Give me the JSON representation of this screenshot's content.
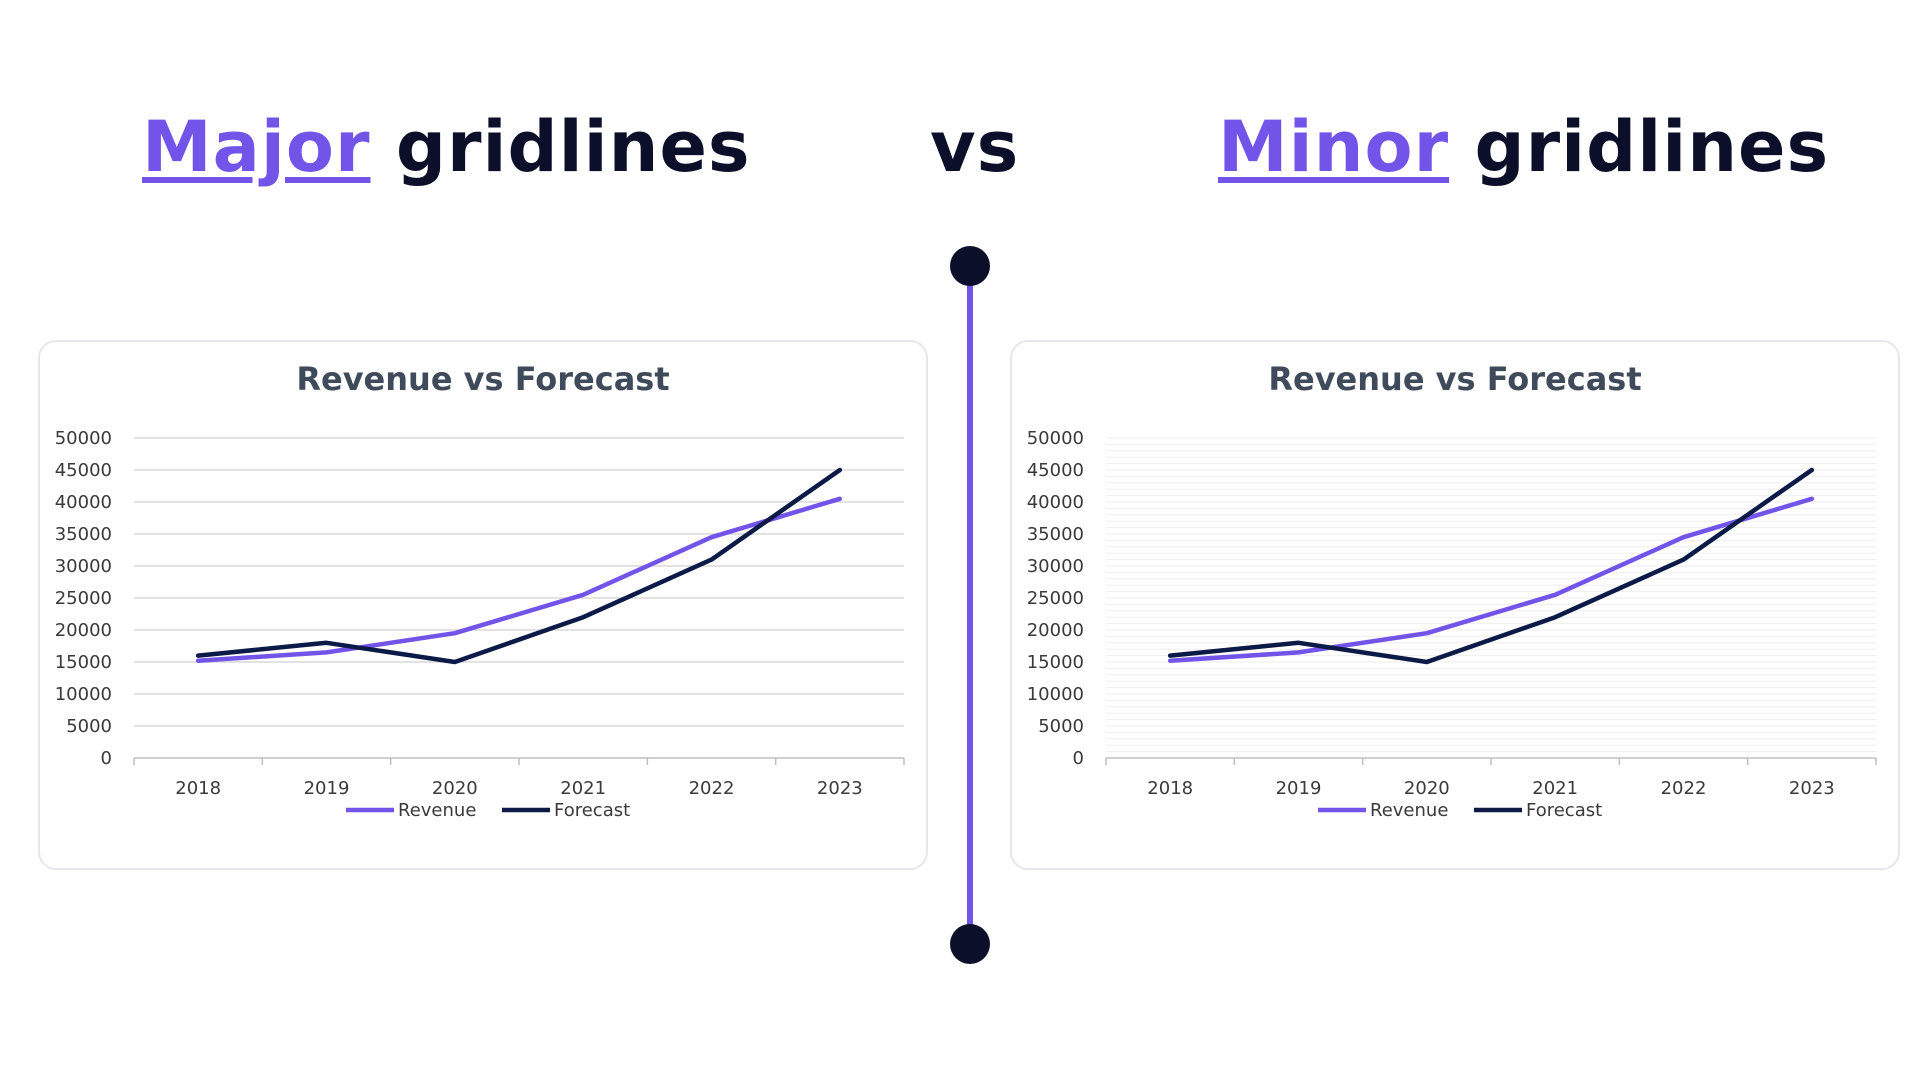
{
  "headings": {
    "left_accent": "Major",
    "left_rest": " gridlines",
    "center": "vs",
    "right_accent": "Minor",
    "right_rest": " gridlines"
  },
  "colors": {
    "accent": "#7255e8",
    "dark": "#0b1a46",
    "major_grid": "#d9d9d9",
    "minor_grid": "#eeeeee"
  },
  "chart_data": [
    {
      "type": "line",
      "title": "Revenue vs Forecast",
      "gridlines": "major",
      "x": [
        "2018",
        "2019",
        "2020",
        "2021",
        "2022",
        "2023"
      ],
      "series": [
        {
          "name": "Revenue",
          "color": "#7255e8",
          "values": [
            15200,
            16500,
            19500,
            25500,
            34500,
            40500
          ]
        },
        {
          "name": "Forecast",
          "color": "#0b1a46",
          "values": [
            16000,
            18000,
            15000,
            22000,
            31000,
            45000
          ]
        }
      ],
      "ylim": [
        0,
        50000
      ],
      "yticks": [
        "0",
        "5000",
        "10000",
        "15000",
        "20000",
        "25000",
        "30000",
        "35000",
        "40000",
        "45000",
        "50000"
      ],
      "legend": "bottom"
    },
    {
      "type": "line",
      "title": "Revenue vs Forecast",
      "gridlines": "minor",
      "x": [
        "2018",
        "2019",
        "2020",
        "2021",
        "2022",
        "2023"
      ],
      "series": [
        {
          "name": "Revenue",
          "color": "#7255e8",
          "values": [
            15200,
            16500,
            19500,
            25500,
            34500,
            40500
          ]
        },
        {
          "name": "Forecast",
          "color": "#0b1a46",
          "values": [
            16000,
            18000,
            15000,
            22000,
            31000,
            45000
          ]
        }
      ],
      "ylim": [
        0,
        50000
      ],
      "yticks": [
        "0",
        "5000",
        "10000",
        "15000",
        "20000",
        "25000",
        "30000",
        "35000",
        "40000",
        "45000",
        "50000"
      ],
      "legend": "bottom"
    }
  ]
}
